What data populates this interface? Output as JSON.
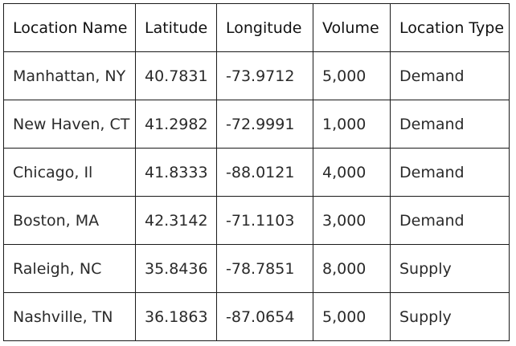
{
  "table": {
    "headers": [
      "Location Name",
      "Latitude",
      "Longitude",
      "Volume",
      "Location Type"
    ],
    "rows": [
      [
        "Manhattan, NY",
        "40.7831",
        "-73.9712",
        "5,000",
        "Demand"
      ],
      [
        "New Haven, CT",
        "41.2982",
        "-72.9991",
        "1,000",
        "Demand"
      ],
      [
        "Chicago, Il",
        "41.8333",
        "-88.0121",
        "4,000",
        "Demand"
      ],
      [
        "Boston, MA",
        "42.3142",
        "-71.1103",
        "3,000",
        "Demand"
      ],
      [
        "Raleigh, NC",
        "35.8436",
        "-78.7851",
        "8,000",
        "Supply"
      ],
      [
        "Nashville, TN",
        "36.1863",
        "-87.0654",
        "5,000",
        "Supply"
      ]
    ]
  }
}
